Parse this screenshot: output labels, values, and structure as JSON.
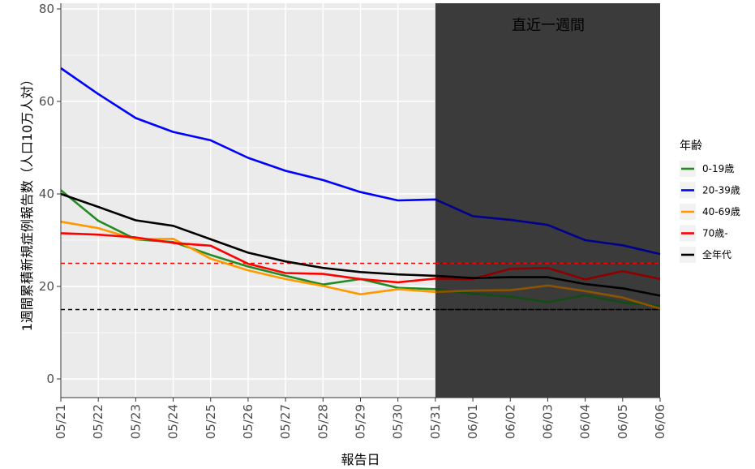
{
  "chart_data": {
    "type": "line",
    "title": "",
    "xlabel": "報告日",
    "ylabel": "1週間累積新規症例報告数（人口10万人対）",
    "categories": [
      "05/21",
      "05/22",
      "05/23",
      "05/24",
      "05/25",
      "05/26",
      "05/27",
      "05/28",
      "05/29",
      "05/30",
      "05/31",
      "06/01",
      "06/02",
      "06/03",
      "06/04",
      "06/05",
      "06/06"
    ],
    "yticks": [
      0,
      20,
      40,
      60,
      80
    ],
    "ylim": [
      -2,
      80
    ],
    "grid": true,
    "legend": {
      "title": "年齢",
      "position": "right"
    },
    "series": [
      {
        "name": "0-19歳",
        "color": "#228b22",
        "values": [
          40.8,
          34.2,
          30.2,
          29.6,
          26.8,
          24.3,
          22.3,
          20.4,
          21.6,
          19.7,
          19.4,
          18.4,
          17.8,
          16.6,
          18.1,
          16.5,
          15.8
        ]
      },
      {
        "name": "20-39歳",
        "color": "#0000ff",
        "values": [
          67.2,
          61.6,
          56.4,
          53.4,
          51.6,
          47.8,
          45.0,
          43.0,
          40.4,
          38.6,
          38.8,
          35.2,
          34.4,
          33.3,
          30.0,
          28.9,
          27.0
        ]
      },
      {
        "name": "40-69歳",
        "color": "#ff9900",
        "values": [
          34.0,
          32.6,
          30.2,
          30.3,
          26.0,
          23.5,
          21.6,
          20.1,
          18.3,
          19.4,
          18.8,
          19.1,
          19.2,
          20.2,
          19.0,
          17.6,
          15.2
        ]
      },
      {
        "name": "70歳-",
        "color": "#ff0000",
        "values": [
          31.5,
          31.2,
          30.6,
          29.4,
          28.8,
          24.9,
          22.9,
          22.7,
          21.6,
          20.9,
          21.7,
          21.6,
          23.8,
          24.0,
          21.5,
          23.3,
          21.6
        ]
      },
      {
        "name": "全年代",
        "color": "#000000",
        "values": [
          40.0,
          37.2,
          34.3,
          33.1,
          30.2,
          27.3,
          25.4,
          24.0,
          23.1,
          22.6,
          22.3,
          21.8,
          22.0,
          22.0,
          20.5,
          19.6,
          18.0
        ]
      }
    ],
    "reference_lines": [
      {
        "y": 25,
        "color": "#ff0000",
        "style": "dashed"
      },
      {
        "y": 15,
        "color": "#000000",
        "style": "dashed"
      }
    ],
    "highlight": {
      "from": "05/31",
      "to": "06/06",
      "label": "直近一週間",
      "color": "#696969"
    }
  }
}
